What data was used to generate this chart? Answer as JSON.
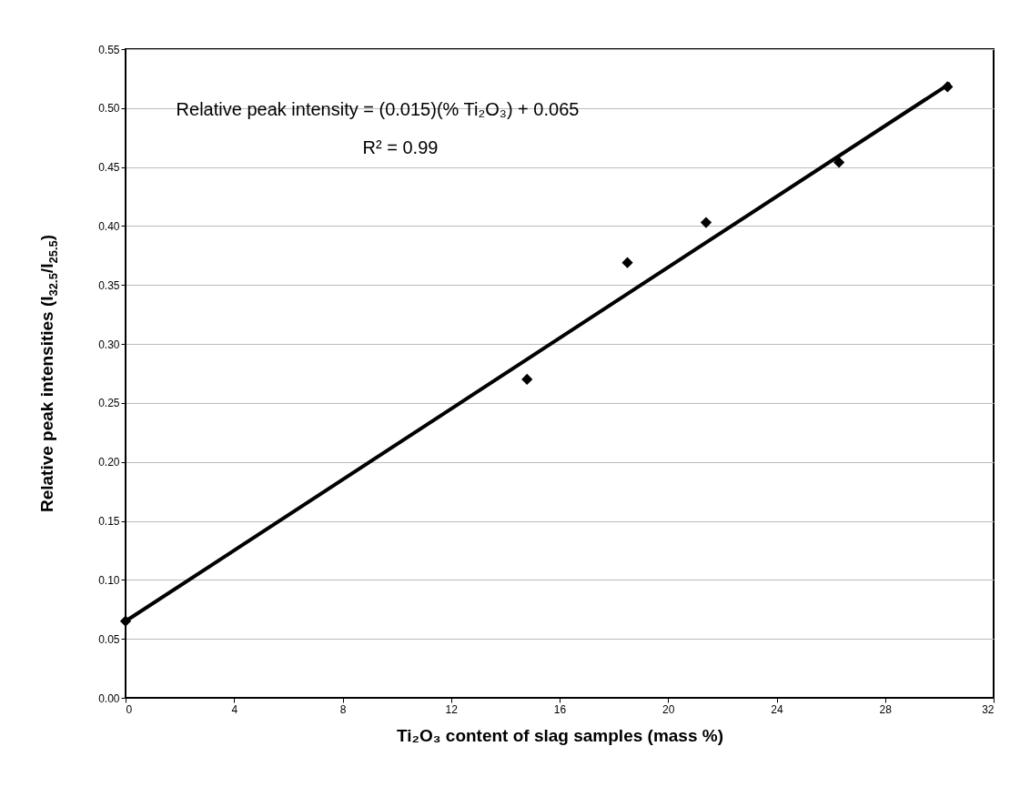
{
  "chart_data": {
    "type": "scatter",
    "xlabel": "Ti₂O₃ content of slag samples (mass %)",
    "ylabel": "Relative peak intensities (I$_{32.5}$/I$_{25.5}$)",
    "series": [
      {
        "color": "#000000",
        "marker": "diamond",
        "x": [
          0,
          14.8,
          18.5,
          21.4,
          26.3,
          30.3
        ],
        "values": [
          0.065,
          0.27,
          0.369,
          0.403,
          0.454,
          0.518
        ]
      },
      {
        "type": "line",
        "color": "#000000",
        "marker": "none",
        "line_style": "solid",
        "x": [
          0,
          30.4
        ],
        "values": [
          0.065,
          0.521
        ]
      }
    ],
    "xlim": [
      0,
      32
    ],
    "xticks": [
      0,
      4,
      8,
      12,
      16,
      20,
      24,
      28,
      32
    ],
    "ylim": [
      0,
      0.55
    ],
    "yticks": [
      {
        "value": 0,
        "label": "0.00"
      },
      {
        "value": 0.05,
        "label": "0.05"
      },
      {
        "value": 0.1,
        "label": "0.10"
      },
      {
        "value": 0.15,
        "label": "0.15"
      },
      {
        "value": 0.2,
        "label": "0.20"
      },
      {
        "value": 0.25,
        "label": "0.25"
      },
      {
        "value": 0.3,
        "label": "0.30"
      },
      {
        "value": 0.35,
        "label": "0.35"
      },
      {
        "value": 0.4,
        "label": "0.40"
      },
      {
        "value": 0.45,
        "label": "0.45"
      },
      {
        "value": 0.5,
        "label": "0.50"
      },
      {
        "value": 0.55,
        "label": "0.55"
      }
    ],
    "grid": "y",
    "annotations": [
      "Relative peak intensity = (0.015)(% Ti₂O₃) + 0.065",
      "R² = 0.99"
    ]
  }
}
